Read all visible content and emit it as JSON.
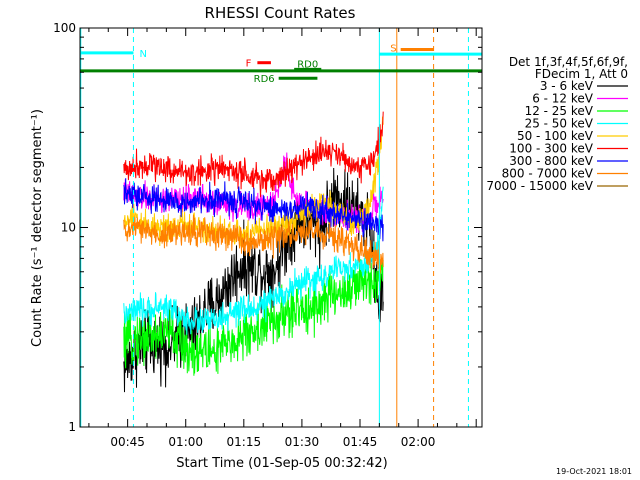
{
  "chart_data": {
    "type": "line",
    "title": "RHESSI Count Rates",
    "xlabel": "Start Time (01-Sep-05 00:32:42)",
    "ylabel": "Count Rate (s⁻¹ detector segment⁻¹)",
    "yscale": "log",
    "ylim": [
      1,
      100
    ],
    "y_ticks": [
      1,
      10,
      100
    ],
    "y_tick_labels": [
      "1",
      "10",
      "100"
    ],
    "x_range_minutes": [
      32.7,
      136.5
    ],
    "x_ticks_minutes": [
      45,
      60,
      75,
      90,
      105,
      120
    ],
    "x_tick_labels": [
      "00:45",
      "01:00",
      "01:15",
      "01:30",
      "01:45",
      "02:00"
    ],
    "grid": false,
    "legend_position": "right",
    "legend_title": [
      "Det 1f,3f,4f,5f,6f,9f,",
      "FDecim 1, Att 0"
    ],
    "timestamp": "19-Oct-2021 18:01",
    "series": [
      {
        "name": "3 - 6 keV",
        "color": "#000000",
        "x": [
          44,
          47,
          50,
          53,
          56,
          59,
          62,
          65,
          68,
          71,
          74,
          77,
          80,
          83,
          86,
          89,
          92,
          95,
          98,
          101,
          104,
          107,
          110,
          111
        ],
        "values": [
          2.0,
          2.4,
          2.6,
          2.6,
          2.6,
          2.9,
          3.0,
          3.8,
          4.2,
          5.2,
          6.4,
          6.4,
          6.0,
          6.2,
          8.6,
          11.0,
          10.6,
          10.0,
          14.4,
          13.8,
          11.6,
          11.0,
          4.0,
          4.8
        ]
      },
      {
        "name": "6 - 12 keV",
        "color": "#ff00ff",
        "x": [
          44,
          47,
          50,
          53,
          56,
          59,
          62,
          65,
          68,
          71,
          74,
          77,
          80,
          83,
          84,
          86,
          87,
          89,
          92,
          95,
          98,
          101,
          104,
          107,
          110,
          111
        ],
        "values": [
          15,
          14.4,
          14.0,
          13.8,
          13.5,
          13.8,
          14.2,
          14.0,
          13.4,
          13.0,
          12.6,
          12.6,
          12.8,
          13.2,
          17,
          21,
          16,
          13.4,
          12.8,
          12.4,
          11.8,
          11.4,
          11.0,
          11.4,
          13.4,
          15
        ]
      },
      {
        "name": "12 - 25 keV",
        "color": "#00ff00",
        "x": [
          44,
          47,
          50,
          53,
          56,
          59,
          62,
          65,
          68,
          71,
          74,
          77,
          80,
          83,
          86,
          89,
          92,
          95,
          98,
          101,
          104,
          107,
          110,
          111
        ],
        "values": [
          2.6,
          2.8,
          2.8,
          2.9,
          3.0,
          2.6,
          2.4,
          2.4,
          2.4,
          2.6,
          2.8,
          3.0,
          3.2,
          3.4,
          3.6,
          3.8,
          4.0,
          4.2,
          4.6,
          4.8,
          5.0,
          5.4,
          5.8,
          6.0
        ]
      },
      {
        "name": "25 - 50 keV",
        "color": "#00ffff",
        "x": [
          44,
          47,
          50,
          53,
          56,
          59,
          62,
          65,
          68,
          71,
          74,
          77,
          80,
          83,
          86,
          89,
          92,
          95,
          98,
          101,
          104,
          107,
          110,
          111
        ],
        "values": [
          3.6,
          3.8,
          3.8,
          4.0,
          4.0,
          3.5,
          3.4,
          3.4,
          3.4,
          3.6,
          3.8,
          3.9,
          4.1,
          4.4,
          4.8,
          5.2,
          5.4,
          5.6,
          6.0,
          6.2,
          6.4,
          6.6,
          8.0,
          18
        ]
      },
      {
        "name": "50 - 100 keV",
        "color": "#ffcc00",
        "x": [
          44,
          47,
          50,
          53,
          56,
          59,
          62,
          65,
          68,
          71,
          74,
          77,
          80,
          83,
          86,
          89,
          92,
          95,
          98,
          101,
          104,
          107,
          110,
          111
        ],
        "values": [
          10.6,
          11.0,
          10.4,
          10.0,
          10.2,
          10.6,
          10.4,
          10.0,
          9.6,
          9.4,
          9.2,
          9.4,
          9.6,
          10.0,
          10.6,
          11.4,
          12.4,
          13.2,
          12.6,
          11.4,
          10.4,
          12.4,
          22,
          32
        ]
      },
      {
        "name": "100 - 300 keV",
        "color": "#ff0000",
        "x": [
          44,
          47,
          50,
          53,
          56,
          59,
          62,
          65,
          68,
          71,
          74,
          77,
          80,
          83,
          86,
          89,
          92,
          95,
          98,
          101,
          104,
          107,
          110,
          111
        ],
        "values": [
          19.4,
          20.4,
          21.0,
          20.4,
          19.6,
          19.0,
          18.6,
          19.4,
          19.8,
          19.4,
          18.6,
          17.4,
          17.0,
          17.4,
          19.0,
          21.0,
          22.0,
          23.6,
          24.6,
          21.6,
          20.6,
          20.0,
          26,
          38
        ]
      },
      {
        "name": "300 - 800 keV",
        "color": "#0000ff",
        "x": [
          44,
          47,
          50,
          53,
          56,
          59,
          62,
          65,
          68,
          71,
          74,
          77,
          80,
          83,
          86,
          89,
          92,
          95,
          98,
          101,
          104,
          107,
          110,
          111
        ],
        "values": [
          14.6,
          14.4,
          14.2,
          13.8,
          13.4,
          13.2,
          13.4,
          13.8,
          14.0,
          13.8,
          13.4,
          13.0,
          12.6,
          12.4,
          12.4,
          12.6,
          12.8,
          12.4,
          11.8,
          11.2,
          10.8,
          10.4,
          10.2,
          10.6
        ]
      },
      {
        "name": "800 - 7000 keV",
        "color": "#ff8000",
        "x": [
          44,
          47,
          50,
          53,
          56,
          59,
          62,
          65,
          68,
          71,
          74,
          77,
          80,
          83,
          86,
          89,
          92,
          95,
          98,
          101,
          104,
          107,
          110,
          111
        ],
        "values": [
          9.4,
          10.0,
          9.6,
          9.2,
          9.2,
          9.4,
          9.6,
          9.6,
          9.2,
          9.0,
          8.8,
          8.6,
          8.6,
          8.8,
          9.0,
          9.4,
          9.6,
          9.4,
          9.0,
          8.4,
          7.8,
          7.4,
          7.0,
          6.6
        ]
      },
      {
        "name": "7000 - 15000 keV",
        "color": "#996600",
        "x": [],
        "values": []
      }
    ],
    "annotations": {
      "top_bars": [
        {
          "label": "N",
          "color": "#00ffff",
          "x_start": 32.7,
          "x_end": 46.5,
          "y": 75
        },
        {
          "label": "S",
          "color": "#ff8000",
          "x_start": 115.5,
          "x_end": 124.0,
          "y": 78
        },
        {
          "label": "",
          "color": "#00ffff",
          "x_start": 110.0,
          "x_end": 136.5,
          "y": 74
        },
        {
          "label": "",
          "color": "#008000",
          "x_start": 32.7,
          "x_end": 136.5,
          "y": 61
        },
        {
          "label": "F",
          "color": "#ff0000",
          "x_start": 78.5,
          "x_end": 82.0,
          "y": 67
        },
        {
          "label": "RD0",
          "color": "#008000",
          "x_start": 88.0,
          "x_end": 95.0,
          "y": 62
        },
        {
          "label": "RD6",
          "color": "#008000",
          "x_start": 84.0,
          "x_end": 94.0,
          "y": 56
        }
      ],
      "vlines": [
        {
          "x": 46.5,
          "color": "#00ffff",
          "style": "dashed"
        },
        {
          "x": 110.0,
          "color": "#00ffff",
          "style": "solid"
        },
        {
          "x": 114.5,
          "color": "#ff8000",
          "style": "solid"
        },
        {
          "x": 124.0,
          "color": "#ff8000",
          "style": "dashed"
        },
        {
          "x": 133.0,
          "color": "#00ffff",
          "style": "dashed"
        },
        {
          "x": 32.9,
          "color": "#00ffff",
          "style": "solid"
        }
      ]
    }
  }
}
